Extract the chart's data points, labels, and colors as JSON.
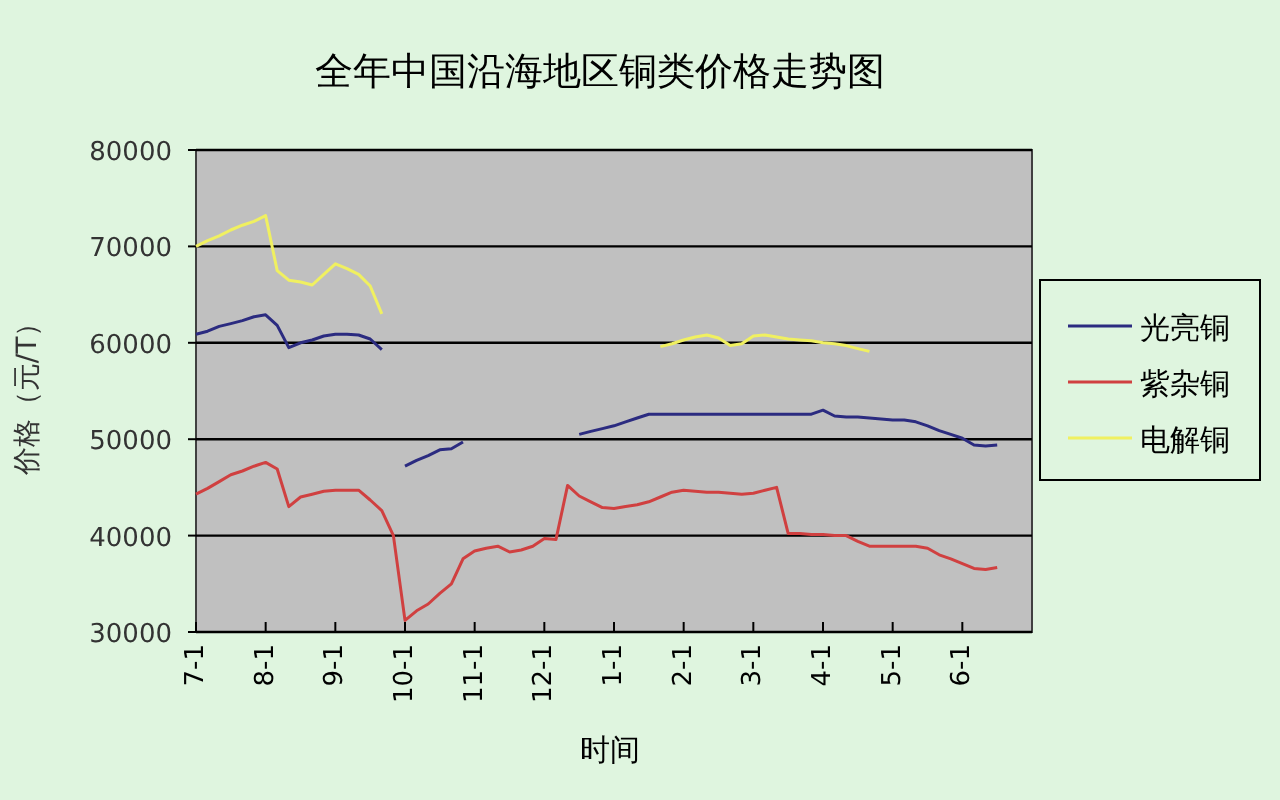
{
  "chart_data": {
    "type": "line",
    "title": "全年中国沿海地区铜类价格走势图",
    "xlabel": "时间",
    "ylabel": "价格（元/T）",
    "categories": [
      "7-1",
      null,
      null,
      null,
      null,
      null,
      "8-1",
      null,
      null,
      null,
      null,
      null,
      "9-1",
      null,
      null,
      null,
      null,
      null,
      "10-1",
      null,
      null,
      null,
      null,
      null,
      "11-1",
      null,
      null,
      null,
      null,
      null,
      "12-1",
      null,
      null,
      null,
      null,
      null,
      "1-1",
      null,
      null,
      null,
      null,
      null,
      "2-1",
      null,
      null,
      null,
      null,
      null,
      "3-1",
      null,
      null,
      null,
      null,
      null,
      "4-1",
      null,
      null,
      null,
      null,
      null,
      "5-1",
      null,
      null,
      null,
      null,
      null,
      "6-1",
      null,
      null,
      null,
      null,
      null
    ],
    "ylim": [
      30000,
      80000
    ],
    "yticks": [
      30000,
      40000,
      50000,
      60000,
      70000,
      80000
    ],
    "grid": "y",
    "legend": "right",
    "marker": "none",
    "line_style": "solid",
    "series": [
      {
        "name": "光亮铜",
        "color": "#2b2b80",
        "values": [
          60900,
          61200,
          61700,
          62000,
          62300,
          62700,
          62900,
          61800,
          59500,
          60000,
          60300,
          60700,
          60900,
          60900,
          60800,
          60400,
          59300,
          null,
          47200,
          47800,
          48300,
          48900,
          49000,
          49700,
          null,
          null,
          null,
          null,
          null,
          null,
          null,
          null,
          null,
          50500,
          50800,
          51100,
          51400,
          51800,
          52200,
          52600,
          52600,
          52600,
          52600,
          52600,
          52600,
          52600,
          52600,
          52600,
          52600,
          52600,
          52600,
          52600,
          52600,
          52600,
          53000,
          52400,
          52300,
          52300,
          52200,
          52100,
          52000,
          52000,
          51800,
          51400,
          50900,
          50500,
          50100,
          49400,
          49300,
          49400,
          null,
          null
        ]
      },
      {
        "name": "紫杂铜",
        "color": "#d04040",
        "values": [
          44300,
          44900,
          45600,
          46300,
          46700,
          47200,
          47600,
          46900,
          43000,
          44000,
          44300,
          44600,
          44700,
          44700,
          44700,
          43700,
          42600,
          40000,
          31200,
          32200,
          32900,
          34000,
          35000,
          37600,
          38400,
          38700,
          38900,
          38300,
          38500,
          38900,
          39700,
          39600,
          45200,
          44100,
          43500,
          42900,
          42800,
          43000,
          43200,
          43500,
          44000,
          44500,
          44700,
          44600,
          44500,
          44500,
          44400,
          44300,
          44400,
          44700,
          45000,
          40200,
          40200,
          40100,
          40100,
          40000,
          40000,
          39400,
          38900,
          38900,
          38900,
          38900,
          38900,
          38700,
          38000,
          37600,
          37100,
          36600,
          36500,
          36700,
          null,
          null
        ]
      },
      {
        "name": "电解铜",
        "color": "#f0f060",
        "values": [
          70000,
          70600,
          71100,
          71700,
          72200,
          72600,
          73200,
          67500,
          66500,
          66300,
          66000,
          67100,
          68200,
          67700,
          67100,
          65900,
          63000,
          null,
          null,
          null,
          null,
          null,
          null,
          null,
          null,
          null,
          null,
          null,
          null,
          null,
          null,
          null,
          null,
          null,
          null,
          null,
          null,
          null,
          null,
          null,
          59600,
          59900,
          60300,
          60600,
          60800,
          60500,
          59700,
          59900,
          60700,
          60800,
          60600,
          60400,
          60300,
          60200,
          60000,
          59900,
          59700,
          59400,
          59100,
          null,
          null,
          null,
          null,
          null,
          null,
          null,
          null,
          null,
          null,
          null,
          null,
          null
        ]
      }
    ]
  }
}
